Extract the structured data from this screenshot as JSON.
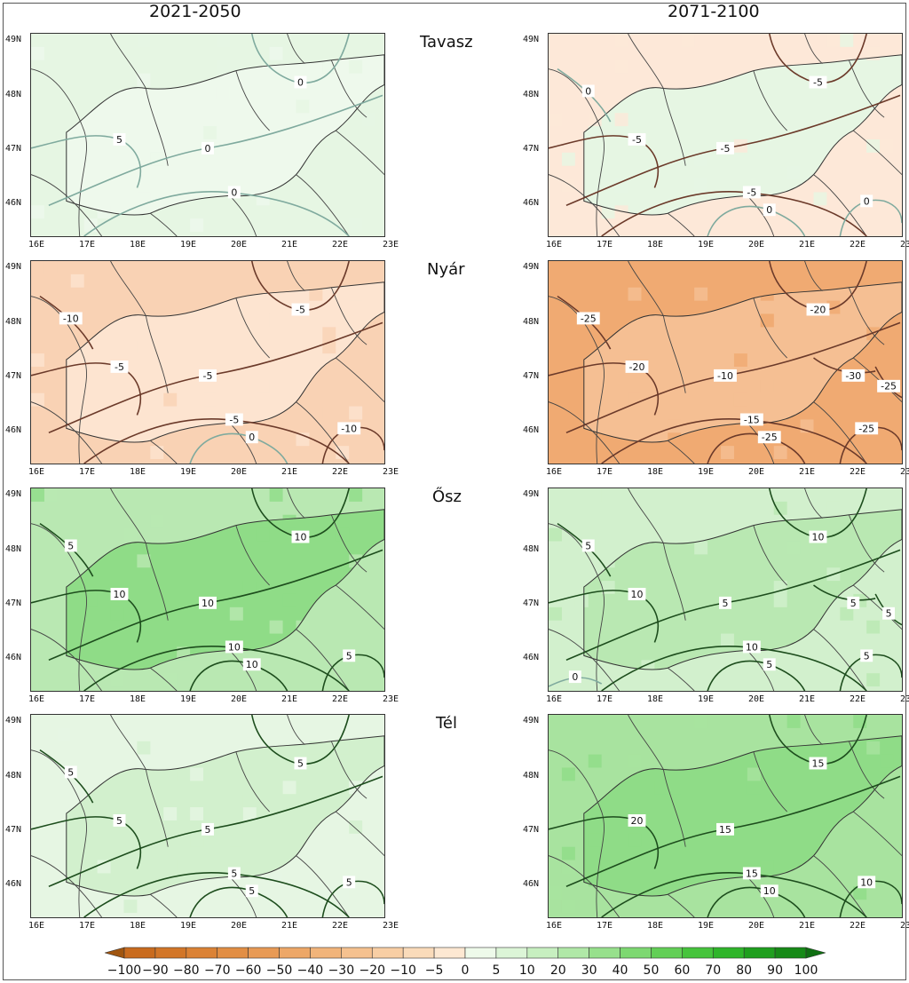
{
  "column_titles": [
    "2021-2050",
    "2071-2100"
  ],
  "seasons": [
    "Tavasz",
    "Nyár",
    "Ősz",
    "Tél"
  ],
  "lat_ticks": [
    "49N",
    "48N",
    "47N",
    "46N"
  ],
  "lon_ticks": [
    "16E",
    "17E",
    "18E",
    "19E",
    "20E",
    "21E",
    "22E",
    "23E"
  ],
  "panels": [
    {
      "period": "2021-2050",
      "season": "Tavasz",
      "fill": "#e6f6e3",
      "region": "#eef9ec",
      "contours": [
        {
          "text": "0",
          "color": "#7faa9e"
        },
        {
          "text": "0",
          "color": "#7faa9e"
        },
        {
          "text": "0",
          "color": "#7faa9e"
        },
        {
          "text": "5",
          "color": "#7faa9e"
        }
      ]
    },
    {
      "period": "2071-2100",
      "season": "Tavasz",
      "fill": "#fde8d8",
      "region": "#e6f6e3",
      "contours": [
        {
          "text": "-5",
          "color": "#6b3a2a"
        },
        {
          "text": "-5",
          "color": "#6b3a2a"
        },
        {
          "text": "-5",
          "color": "#6b3a2a"
        },
        {
          "text": "-5",
          "color": "#6b3a2a"
        },
        {
          "text": "0",
          "color": "#7faa9e"
        },
        {
          "text": "0",
          "color": "#7faa9e"
        },
        {
          "text": "0",
          "color": "#7faa9e"
        }
      ]
    },
    {
      "period": "2021-2050",
      "season": "Nyár",
      "fill": "#f9d2b4",
      "region": "#fde4d0",
      "contours": [
        {
          "text": "-5",
          "color": "#6b3a2a"
        },
        {
          "text": "-5",
          "color": "#6b3a2a"
        },
        {
          "text": "-5",
          "color": "#6b3a2a"
        },
        {
          "text": "-5",
          "color": "#6b3a2a"
        },
        {
          "text": "0",
          "color": "#7faa9e"
        },
        {
          "text": "-10",
          "color": "#6b3a2a"
        },
        {
          "text": "-10",
          "color": "#6b3a2a"
        }
      ]
    },
    {
      "period": "2071-2100",
      "season": "Nyár",
      "fill": "#f0aa72",
      "region": "#f5bf93",
      "contours": [
        {
          "text": "-10",
          "color": "#6b3a2a"
        },
        {
          "text": "-15",
          "color": "#6b3a2a"
        },
        {
          "text": "-20",
          "color": "#6b3a2a"
        },
        {
          "text": "-20",
          "color": "#6b3a2a"
        },
        {
          "text": "-25",
          "color": "#6b3a2a"
        },
        {
          "text": "-25",
          "color": "#6b3a2a"
        },
        {
          "text": "-25",
          "color": "#6b3a2a"
        },
        {
          "text": "-25",
          "color": "#6b3a2a"
        },
        {
          "text": "-30",
          "color": "#6b3a2a"
        }
      ]
    },
    {
      "period": "2021-2050",
      "season": "Ősz",
      "fill": "#b9e8b2",
      "region": "#8fdc87",
      "contours": [
        {
          "text": "10",
          "color": "#1d4d1d"
        },
        {
          "text": "10",
          "color": "#1d4d1d"
        },
        {
          "text": "10",
          "color": "#1d4d1d"
        },
        {
          "text": "10",
          "color": "#1d4d1d"
        },
        {
          "text": "10",
          "color": "#1d4d1d"
        },
        {
          "text": "5",
          "color": "#1d4d1d"
        },
        {
          "text": "5",
          "color": "#1d4d1d"
        }
      ]
    },
    {
      "period": "2071-2100",
      "season": "Ősz",
      "fill": "#d2f0cd",
      "region": "#b9e8b2",
      "contours": [
        {
          "text": "5",
          "color": "#1d4d1d"
        },
        {
          "text": "10",
          "color": "#1d4d1d"
        },
        {
          "text": "10",
          "color": "#1d4d1d"
        },
        {
          "text": "10",
          "color": "#1d4d1d"
        },
        {
          "text": "5",
          "color": "#1d4d1d"
        },
        {
          "text": "5",
          "color": "#1d4d1d"
        },
        {
          "text": "5",
          "color": "#1d4d1d"
        },
        {
          "text": "5",
          "color": "#1d4d1d"
        },
        {
          "text": "5",
          "color": "#1d4d1d"
        },
        {
          "text": "0",
          "color": "#7faa9e"
        }
      ]
    },
    {
      "period": "2021-2050",
      "season": "Tél",
      "fill": "#e6f6e3",
      "region": "#d2f0cd",
      "contours": [
        {
          "text": "5",
          "color": "#1d4d1d"
        },
        {
          "text": "5",
          "color": "#1d4d1d"
        },
        {
          "text": "5",
          "color": "#1d4d1d"
        },
        {
          "text": "5",
          "color": "#1d4d1d"
        },
        {
          "text": "5",
          "color": "#1d4d1d"
        },
        {
          "text": "5",
          "color": "#1d4d1d"
        },
        {
          "text": "5",
          "color": "#1d4d1d"
        }
      ]
    },
    {
      "period": "2071-2100",
      "season": "Tél",
      "fill": "#a8e39f",
      "region": "#8fdc87",
      "contours": [
        {
          "text": "15",
          "color": "#1d4d1d"
        },
        {
          "text": "15",
          "color": "#1d4d1d"
        },
        {
          "text": "15",
          "color": "#1d4d1d"
        },
        {
          "text": "20",
          "color": "#1d4d1d"
        },
        {
          "text": "10",
          "color": "#1d4d1d"
        },
        {
          "text": "10",
          "color": "#1d4d1d"
        }
      ]
    }
  ],
  "legend": {
    "labels": [
      "−100",
      "−90",
      "−80",
      "−70",
      "−60",
      "−50",
      "−40",
      "−30",
      "−20",
      "−10",
      "−5",
      "0",
      "5",
      "10",
      "20",
      "30",
      "40",
      "50",
      "60",
      "70",
      "80",
      "90",
      "100"
    ],
    "colors": [
      "#c96b1e",
      "#d27628",
      "#db8235",
      "#e28e44",
      "#e89a55",
      "#eda767",
      "#f1b47a",
      "#f5c18f",
      "#f8cea4",
      "#fadbba",
      "#fde8d2",
      "#eefaea",
      "#dcf5d7",
      "#c7efc0",
      "#b0e8a7",
      "#97e08c",
      "#7dd871",
      "#62cf56",
      "#46c43c",
      "#2fb52a",
      "#1f9f1e",
      "#168a17"
    ],
    "end_left": "#a05510",
    "end_right": "#0f6f12"
  }
}
